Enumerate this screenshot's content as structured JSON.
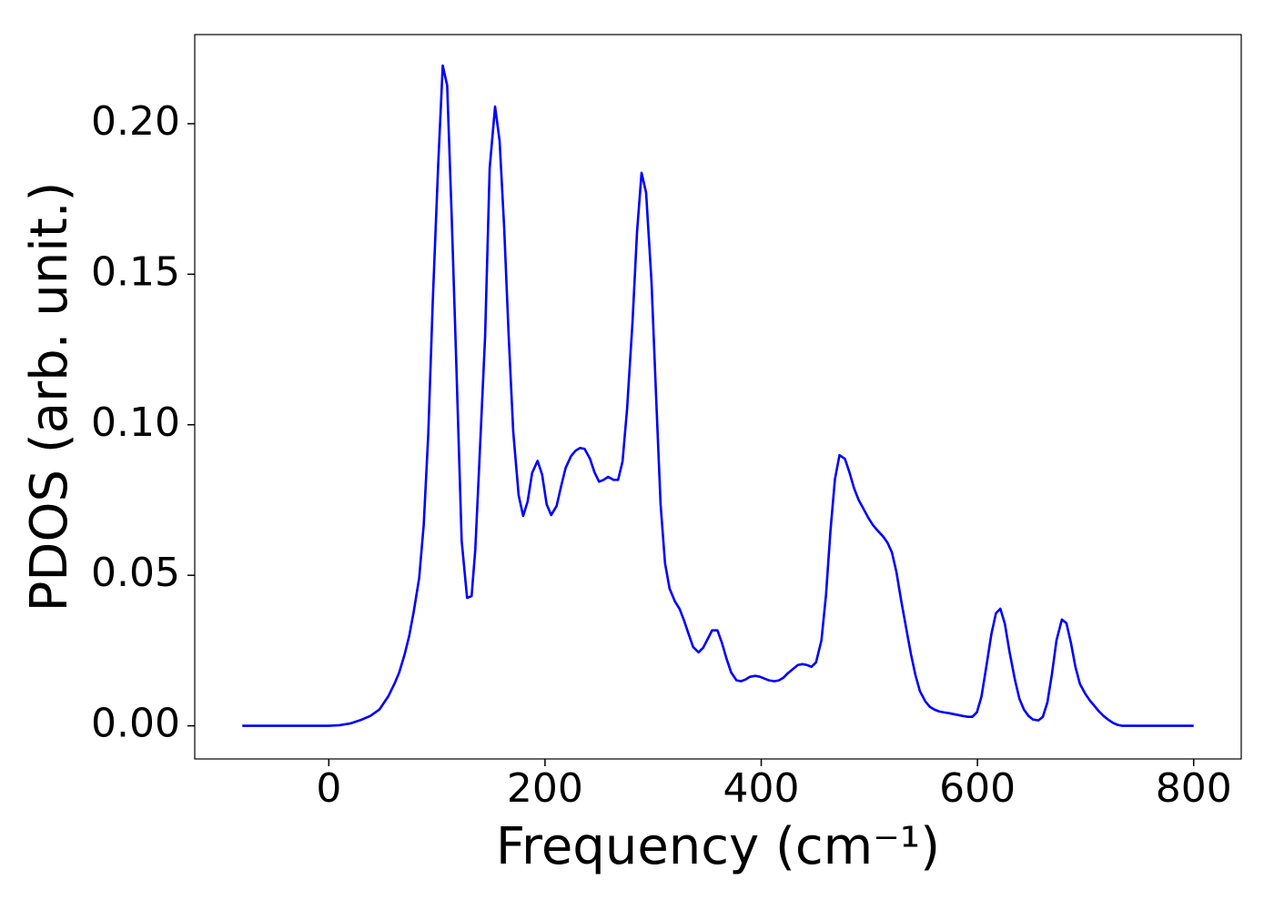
{
  "chart_data": {
    "type": "line",
    "xlabel": "Frequency (cm⁻¹)",
    "ylabel": "PDOS (arb. unit.)",
    "x": [
      -80,
      0,
      10,
      20,
      30.1,
      38.5,
      46.8,
      55.2,
      61,
      65.2,
      70.2,
      74.4,
      78.6,
      83.6,
      87.8,
      92,
      96.2,
      101.2,
      105.4,
      109.5,
      113.7,
      117.9,
      122.9,
      127.9,
      132.1,
      135.5,
      139.6,
      144.6,
      148.8,
      153.8,
      158,
      162.2,
      166.4,
      170.6,
      175.6,
      179.8,
      183.9,
      188.1,
      193.1,
      197.3,
      201.5,
      205.7,
      210.7,
      214.9,
      219.1,
      224.1,
      228.3,
      232.4,
      236.6,
      241.6,
      245.8,
      250,
      254.2,
      258.4,
      263.4,
      267.6,
      271.7,
      275.9,
      280.9,
      285.1,
      289.3,
      293.5,
      298.5,
      302.7,
      306.9,
      311,
      315.2,
      320.2,
      324.4,
      328.6,
      332.8,
      337,
      342,
      346.2,
      350.3,
      354.5,
      359.5,
      363.7,
      367.9,
      372.1,
      377.1,
      381.3,
      385.5,
      389.6,
      394.6,
      398.8,
      403,
      407.2,
      412.2,
      416.4,
      420.6,
      424.7,
      429.8,
      433.9,
      438.1,
      442.3,
      446.5,
      450.7,
      455.7,
      459.9,
      464,
      468.2,
      472.4,
      477.4,
      481.6,
      485.8,
      490,
      495,
      499.2,
      503.3,
      507.5,
      512.5,
      516.7,
      520.9,
      525.1,
      529.3,
      534.3,
      538.5,
      542.6,
      546.8,
      551.8,
      556,
      560.2,
      564.4,
      568.6,
      573.6,
      577.8,
      581.9,
      586.1,
      591.1,
      595.3,
      599.5,
      603.7,
      607.9,
      612.9,
      617.1,
      621.2,
      625.4,
      629.6,
      634.6,
      638.8,
      643,
      647.2,
      651.3,
      656.4,
      660.5,
      664.7,
      668.9,
      673.1,
      678.1,
      682.3,
      686.5,
      690.6,
      694.8,
      699.8,
      704,
      708.2,
      712.4,
      716.6,
      720.7,
      725.8,
      729.9,
      734.1,
      800
    ],
    "series": [
      {
        "name": "PDOS",
        "color": "#0000ff",
        "values": [
          0,
          0,
          0.0002,
          0.0008,
          0.002,
          0.0033,
          0.0054,
          0.0099,
          0.0142,
          0.0178,
          0.0238,
          0.0299,
          0.038,
          0.0491,
          0.0667,
          0.0968,
          0.1412,
          0.1865,
          0.2193,
          0.2127,
          0.1689,
          0.1207,
          0.0615,
          0.0425,
          0.0431,
          0.0585,
          0.0902,
          0.1294,
          0.1852,
          0.2057,
          0.1943,
          0.1656,
          0.1294,
          0.0977,
          0.0766,
          0.0697,
          0.0745,
          0.084,
          0.088,
          0.0835,
          0.0736,
          0.07,
          0.073,
          0.0796,
          0.0857,
          0.0896,
          0.0914,
          0.0923,
          0.092,
          0.0887,
          0.0842,
          0.0811,
          0.0817,
          0.0827,
          0.0817,
          0.0817,
          0.0878,
          0.1052,
          0.1339,
          0.164,
          0.1837,
          0.1771,
          0.1475,
          0.1098,
          0.0736,
          0.054,
          0.0456,
          0.0413,
          0.0389,
          0.035,
          0.0305,
          0.0262,
          0.0244,
          0.0259,
          0.0287,
          0.0317,
          0.0317,
          0.0275,
          0.0223,
          0.0178,
          0.0151,
          0.0148,
          0.0154,
          0.0163,
          0.0166,
          0.0163,
          0.0157,
          0.0151,
          0.0148,
          0.0151,
          0.016,
          0.0175,
          0.019,
          0.0202,
          0.0205,
          0.0202,
          0.0196,
          0.0211,
          0.0284,
          0.0434,
          0.0646,
          0.082,
          0.0899,
          0.0887,
          0.0842,
          0.079,
          0.0751,
          0.0718,
          0.069,
          0.0667,
          0.0649,
          0.063,
          0.0609,
          0.0576,
          0.051,
          0.0419,
          0.032,
          0.0238,
          0.0169,
          0.0115,
          0.0081,
          0.0063,
          0.0054,
          0.0048,
          0.0045,
          0.0042,
          0.0039,
          0.0036,
          0.0033,
          0.003,
          0.003,
          0.0045,
          0.0097,
          0.019,
          0.0305,
          0.0374,
          0.0389,
          0.0338,
          0.0247,
          0.0154,
          0.009,
          0.0054,
          0.0033,
          0.0021,
          0.0018,
          0.003,
          0.0078,
          0.0172,
          0.0284,
          0.0353,
          0.0341,
          0.0275,
          0.0196,
          0.0139,
          0.0106,
          0.0084,
          0.0066,
          0.0048,
          0.0033,
          0.0021,
          0.0009,
          0.0003,
          0,
          0
        ]
      }
    ],
    "xlim": [
      -124,
      844
    ],
    "ylim": [
      -0.011,
      0.2296
    ],
    "xticks": [
      0,
      200,
      400,
      600,
      800
    ],
    "yticks": [
      {
        "value": 0,
        "label": "0.00"
      },
      {
        "value": 0.05,
        "label": "0.05"
      },
      {
        "value": 0.1,
        "label": "0.10"
      },
      {
        "value": 0.15,
        "label": "0.15"
      },
      {
        "value": 0.2,
        "label": "0.20"
      }
    ],
    "grid": false
  }
}
